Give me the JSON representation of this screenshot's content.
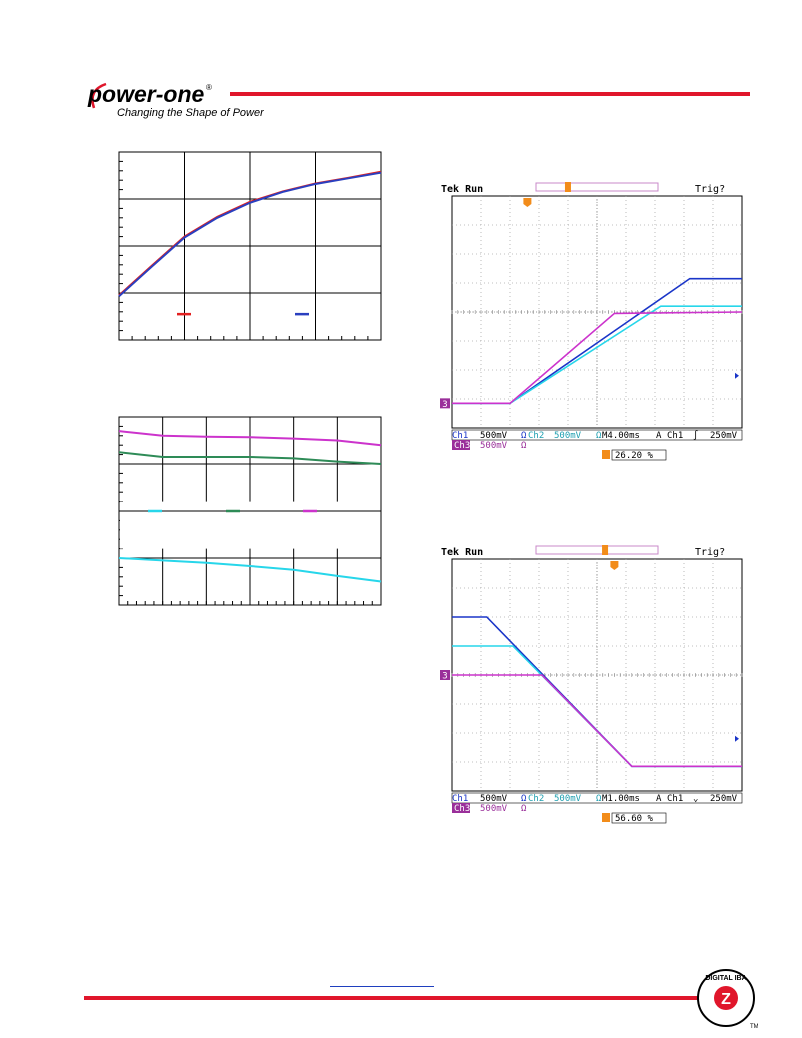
{
  "header": {
    "brand_name": "power-one",
    "registered_mark": "®",
    "tagline": "Changing the Shape of Power"
  },
  "footer": {
    "badge_text": "DIGITAL IBA",
    "badge_letter": "Z",
    "trademark": "TM"
  },
  "colors": {
    "brand_red": "#e0162b",
    "ch1_blue": "#1a35c8",
    "ch2_cyan": "#27d6ea",
    "ch3_magenta": "#cc33cc",
    "trigger_orange": "#f28c1a",
    "green_series": "#2e8b57",
    "red_series": "#e22020"
  },
  "chart_data": [
    {
      "type": "line",
      "x": [
        0,
        0.5,
        1,
        1.5,
        2,
        2.5,
        3,
        3.5,
        4
      ],
      "xlim": [
        0,
        4
      ],
      "ylim": [
        0,
        4
      ],
      "grid": true,
      "legend_placement": "bottom",
      "series": [
        {
          "color": "#e22020",
          "values": [
            0.95,
            1.58,
            2.2,
            2.62,
            2.94,
            3.16,
            3.33,
            3.45,
            3.58
          ]
        },
        {
          "color": "#2a3fbf",
          "values": [
            0.93,
            1.56,
            2.18,
            2.6,
            2.92,
            3.15,
            3.32,
            3.44,
            3.56
          ]
        }
      ]
    },
    {
      "type": "line",
      "x": [
        0,
        1,
        2,
        3,
        4,
        5,
        6
      ],
      "xlim": [
        0,
        6
      ],
      "ylim": [
        0,
        4
      ],
      "grid": true,
      "legend_placement": "middle",
      "series": [
        {
          "color": "#27d6ea",
          "values": [
            1.0,
            0.95,
            0.9,
            0.83,
            0.75,
            0.62,
            0.5
          ]
        },
        {
          "color": "#2e8b57",
          "values": [
            3.25,
            3.15,
            3.15,
            3.15,
            3.12,
            3.05,
            3.0
          ]
        },
        {
          "color": "#cc33cc",
          "values": [
            3.7,
            3.6,
            3.58,
            3.57,
            3.54,
            3.5,
            3.4
          ]
        }
      ]
    },
    {
      "type": "line",
      "status": "Tek Run",
      "trig_status": "Trig?",
      "x_divisions": 10,
      "y_divisions": 8,
      "xlim": [
        0,
        10
      ],
      "ylim": [
        0,
        8
      ],
      "channel_marker": "3",
      "trigger_marker": "T",
      "readouts": {
        "ch1": "Ch1",
        "ch1_scale": "500mV",
        "ch1_coupling": "Ω",
        "ch2": "Ch2",
        "ch2_scale": "500mV",
        "ch2_coupling": "Ω",
        "timebase": "M4.00ms",
        "trig_mode": "A",
        "trig_source": "Ch1",
        "trig_slope": "∫",
        "trig_level": "250mV",
        "ch3": "Ch3",
        "ch3_scale": "500mV",
        "ch3_coupling": "Ω",
        "trigger_position": "26.20 %"
      },
      "series": [
        {
          "name": "Ch1",
          "color": "#1a35c8",
          "x": [
            0,
            2,
            8.2,
            10
          ],
          "values": [
            0.85,
            0.85,
            5.15,
            5.15
          ]
        },
        {
          "name": "Ch2",
          "color": "#27d6ea",
          "x": [
            0,
            2,
            7.2,
            10
          ],
          "values": [
            0.85,
            0.85,
            4.2,
            4.2
          ]
        },
        {
          "name": "Ch3",
          "color": "#cc33cc",
          "x": [
            0,
            2,
            5.6,
            10
          ],
          "values": [
            0.85,
            0.85,
            3.95,
            4.0
          ]
        }
      ]
    },
    {
      "type": "line",
      "status": "Tek Run",
      "trig_status": "Trig?",
      "x_divisions": 10,
      "y_divisions": 8,
      "xlim": [
        0,
        10
      ],
      "ylim": [
        0,
        8
      ],
      "channel_marker": "3",
      "trigger_marker": "T",
      "readouts": {
        "ch1": "Ch1",
        "ch1_scale": "500mV",
        "ch1_coupling": "Ω",
        "ch2": "Ch2",
        "ch2_scale": "500mV",
        "ch2_coupling": "Ω",
        "timebase": "M1.00ms",
        "trig_mode": "A",
        "trig_source": "Ch1",
        "trig_slope": "⌄",
        "trig_level": "250mV",
        "ch3": "Ch3",
        "ch3_scale": "500mV",
        "ch3_coupling": "Ω",
        "trigger_position": "56.60 %"
      },
      "series": [
        {
          "name": "Ch1",
          "color": "#1a35c8",
          "x": [
            0,
            1.2,
            6.2,
            10
          ],
          "values": [
            6.0,
            6.0,
            0.85,
            0.85
          ]
        },
        {
          "name": "Ch2",
          "color": "#27d6ea",
          "x": [
            0,
            2.1,
            6.2,
            10
          ],
          "values": [
            5.0,
            5.0,
            0.85,
            0.85
          ]
        },
        {
          "name": "Ch3",
          "color": "#cc33cc",
          "x": [
            0,
            3.1,
            6.2,
            10
          ],
          "values": [
            4.0,
            4.0,
            0.85,
            0.85
          ]
        }
      ]
    }
  ]
}
